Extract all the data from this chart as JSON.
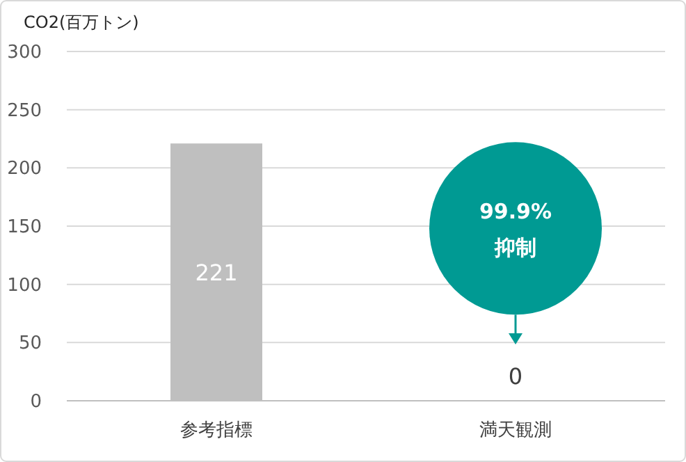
{
  "chart_data": {
    "type": "bar",
    "ylabel": "CO2(百万トン)",
    "categories": [
      "参考指標",
      "満天観測"
    ],
    "values": [
      221,
      0
    ],
    "color": "#bfbfbf",
    "ylim": [
      0,
      300
    ],
    "yticks": [
      0,
      50,
      100,
      150,
      200,
      250,
      300
    ],
    "grid": "y",
    "data_labels": true,
    "annotations": [
      "99.9%",
      "抑制"
    ]
  }
}
